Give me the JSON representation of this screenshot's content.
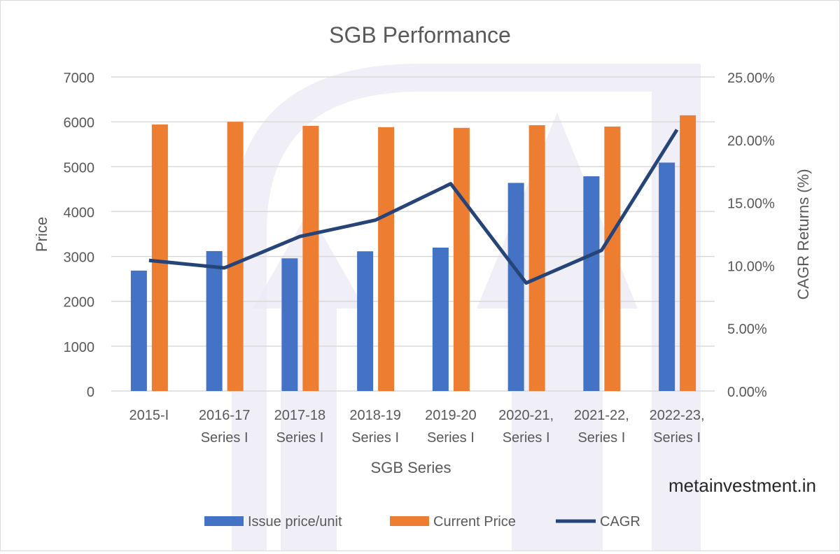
{
  "watermark": "metainvestment.in",
  "colors": {
    "issue": "#4472C4",
    "current": "#ED7D31",
    "cagr": "#264478",
    "grid": "#d9d9d9",
    "watermark_shape": "#ecebf5"
  },
  "chart_data": {
    "type": "bar+line",
    "title": "SGB Performance",
    "xlabel": "SGB Series",
    "ylabel": "Price",
    "y2label": "CAGR Returns (%)",
    "categories": [
      [
        "2015-I"
      ],
      [
        "2016-17",
        "Series I"
      ],
      [
        "2017-18",
        "Series I"
      ],
      [
        "2018-19",
        "Series I"
      ],
      [
        "2019-20",
        "Series I"
      ],
      [
        "2020-21,",
        "Series I"
      ],
      [
        "2021-22,",
        "Series I"
      ],
      [
        "2022-23,",
        "Series I"
      ]
    ],
    "ylim": [
      0,
      7000
    ],
    "yticks": [
      "0",
      "1000",
      "2000",
      "3000",
      "4000",
      "5000",
      "6000",
      "7000"
    ],
    "y2lim": [
      0,
      25
    ],
    "y2ticks": [
      "0.00%",
      "5.00%",
      "10.00%",
      "15.00%",
      "20.00%",
      "25.00%"
    ],
    "grid": true,
    "legend_position": "bottom",
    "series": [
      {
        "name": "Issue price/unit",
        "type": "bar",
        "axis": "left",
        "values": [
          2684,
          3119,
          2957,
          3114,
          3196,
          4639,
          4786,
          5091
        ]
      },
      {
        "name": "Current Price",
        "type": "bar",
        "axis": "left",
        "values": [
          5940,
          6000,
          5910,
          5880,
          5865,
          5925,
          5895,
          6145
        ]
      },
      {
        "name": "CAGR",
        "type": "line",
        "axis": "right",
        "values": [
          10.4,
          9.8,
          12.3,
          13.6,
          16.5,
          8.6,
          11.2,
          20.8
        ]
      }
    ]
  }
}
